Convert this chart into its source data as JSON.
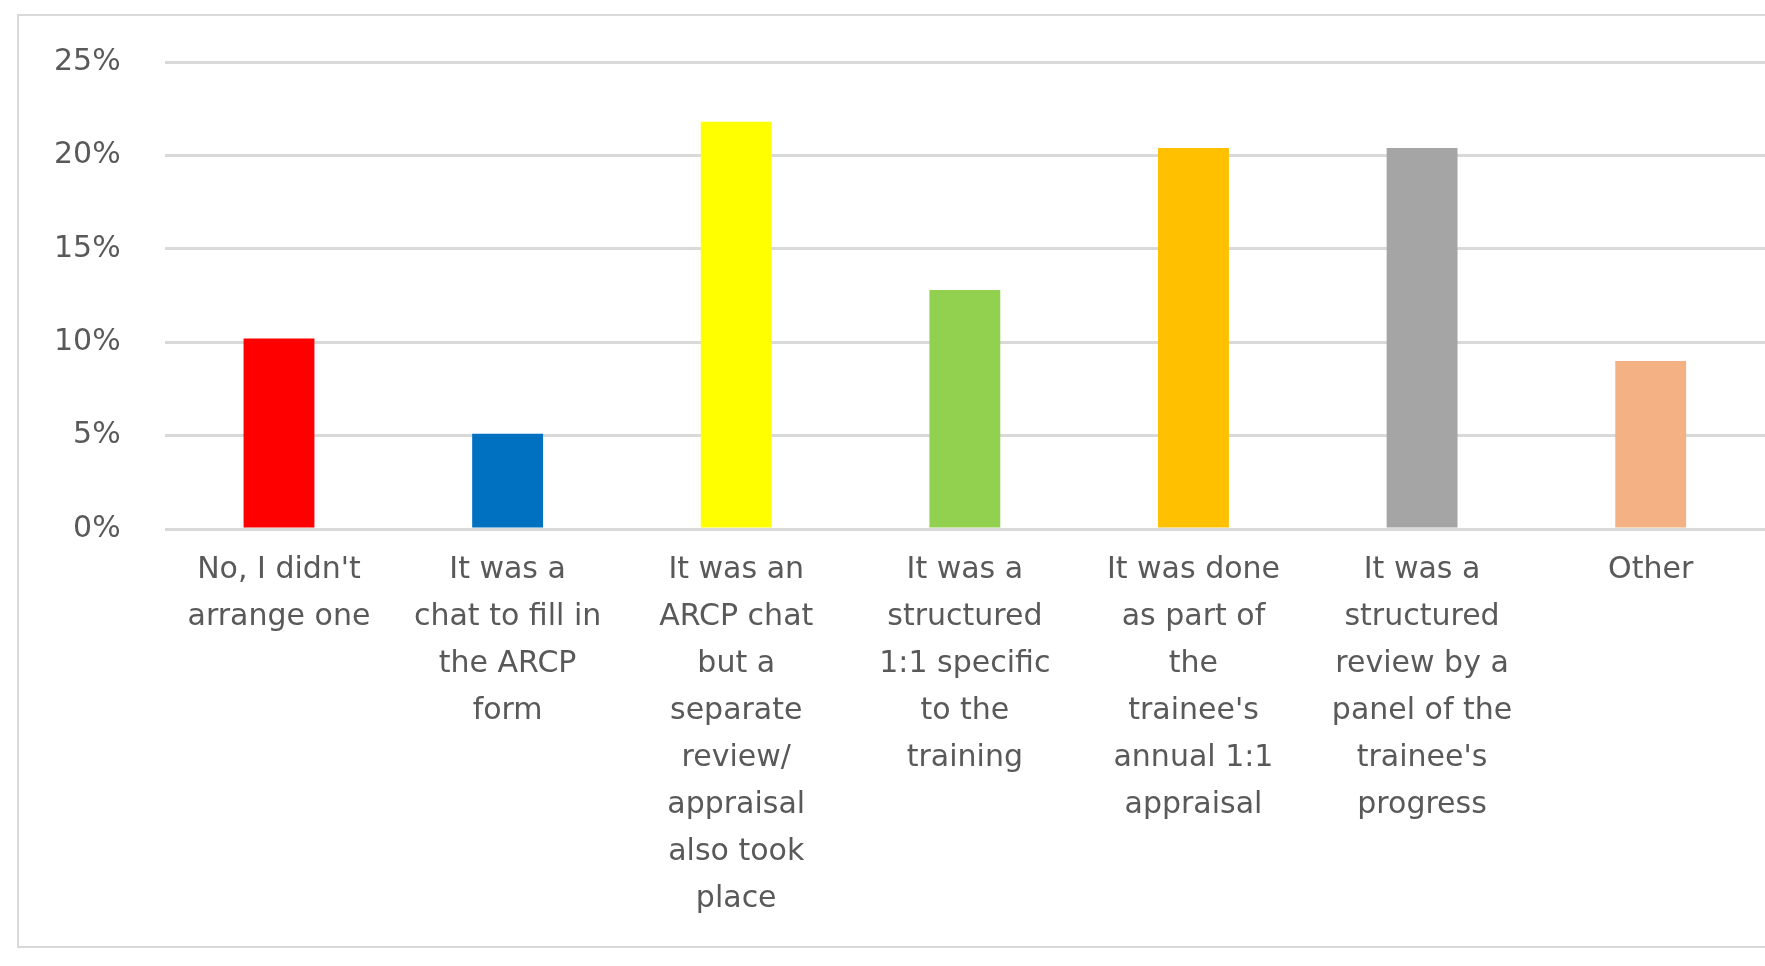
{
  "chart_data": {
    "type": "bar",
    "categories": [
      "No, I didn't arrange one",
      "It was a chat to fill in the ARCP form",
      "It was an ARCP chat but a separate review/ appraisal also took place",
      "It was a structured 1:1 specific to the training",
      "It was done as part of the trainee's annual 1:1 appraisal",
      "It was a structured review by a panel of the trainee's progress",
      "Other"
    ],
    "values": [
      10.2,
      5.1,
      21.8,
      12.8,
      20.4,
      20.4,
      9.0
    ],
    "colors": [
      "#ff0000",
      "#0070c0",
      "#ffff00",
      "#92d050",
      "#ffc000",
      "#a5a5a5",
      "#f4b183"
    ],
    "ylim": [
      0,
      25
    ],
    "yticks": [
      {
        "value": 0,
        "label": "0%"
      },
      {
        "value": 5,
        "label": "5%"
      },
      {
        "value": 10,
        "label": "10%"
      },
      {
        "value": 15,
        "label": "15%"
      },
      {
        "value": 20,
        "label": "20%"
      },
      {
        "value": 25,
        "label": "25%"
      }
    ],
    "grid": "y"
  }
}
